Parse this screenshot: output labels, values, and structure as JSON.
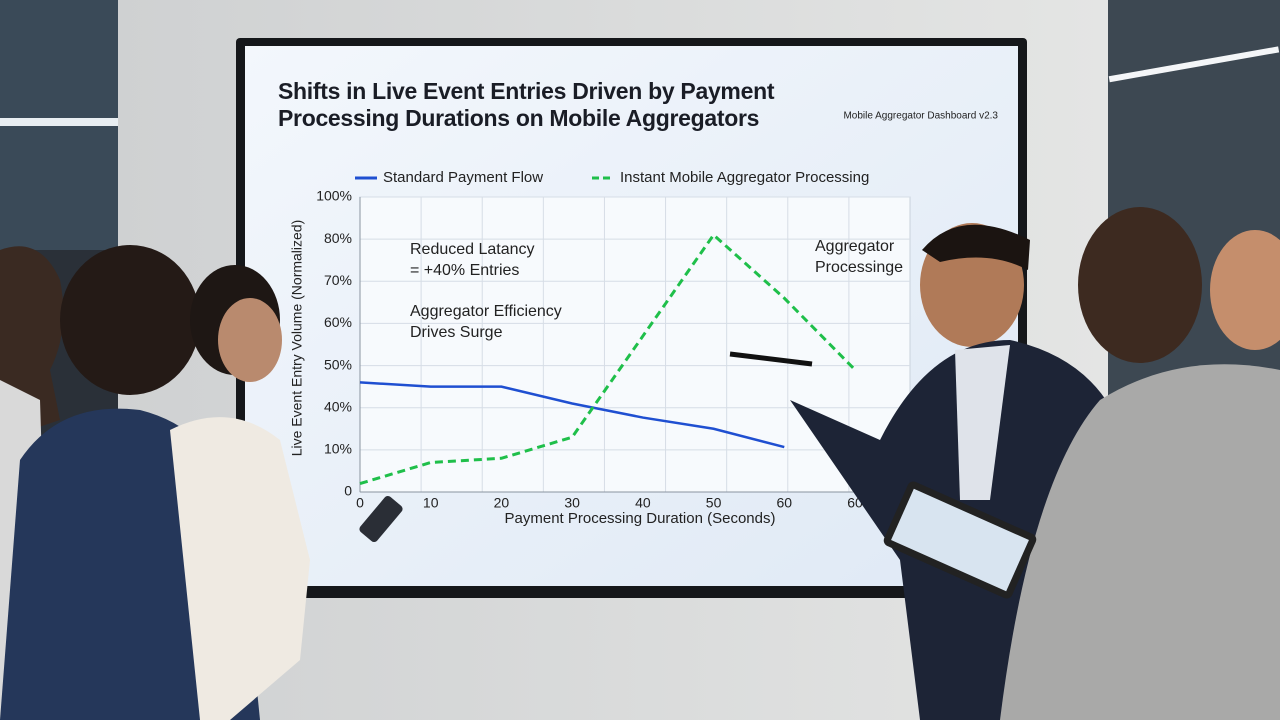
{
  "chart_data": {
    "type": "line",
    "title": "Shifts in Live Event Entries Driven by Payment Processing Durations on Mobile Aggregators",
    "subtitle": "Mobile Aggregator Dashboard v2.3",
    "x_label": "Payment Processing Duration (Seconds)",
    "y_label": "Live Event Entry Volume (Normalized)",
    "categories": [
      "0",
      "10",
      "20",
      "30",
      "40",
      "50",
      "60",
      "60"
    ],
    "series": [
      {
        "name": "Standard Payment Flow",
        "color": "#1f4fd1",
        "dashed": false,
        "values": [
          46,
          45,
          45,
          41,
          33,
          25,
          12,
          null
        ]
      },
      {
        "name": "Instant Mobile Aggregator Processing",
        "color": "#1fbf4a",
        "dashed": true,
        "values": [
          2,
          7,
          8,
          19,
          57,
          82,
          66,
          49
        ]
      }
    ],
    "ylim": [
      0,
      100
    ],
    "yticks": [
      0,
      {
        "value": 10,
        "label": "10%"
      },
      {
        "value": 40,
        "label": "40%"
      },
      {
        "value": 50,
        "label": "50%"
      },
      {
        "value": 60,
        "label": "60%"
      },
      {
        "value": 70,
        "label": "70%"
      },
      {
        "value": 80,
        "label": "80%"
      },
      {
        "value": 100,
        "label": "100%"
      }
    ],
    "grid": true,
    "annotations": [
      [
        "Reduced Latancy",
        "= +40% Entries"
      ],
      [
        "Aggregator Efficiency",
        "Drives Surge"
      ],
      [
        "Aggregator",
        "Processinge"
      ]
    ]
  }
}
